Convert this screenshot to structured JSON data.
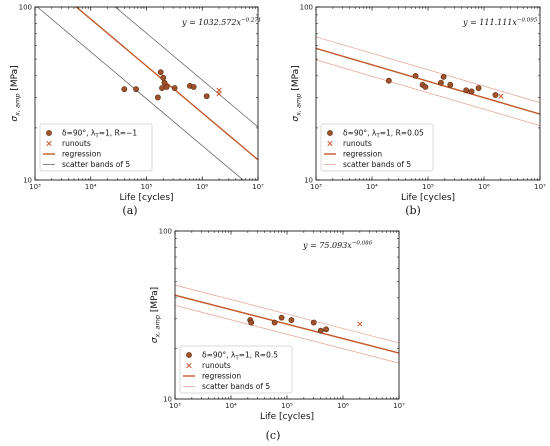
{
  "chart_data": [
    {
      "type": "scatter",
      "panel_label": "(a)",
      "xlabel": "Life [cycles]",
      "ylabel": "σx,amp [MPa]",
      "xscale": "log",
      "yscale": "log",
      "xlim": [
        1000,
        10000000
      ],
      "ylim": [
        10,
        100
      ],
      "x_ticks": [
        "10³",
        "10⁴",
        "10⁵",
        "10⁶",
        "10⁷"
      ],
      "y_ticks": [
        "10",
        "100"
      ],
      "equation": "y = 1032.572x^−0.271",
      "equation_parts": [
        "y = 1032.572x",
        "−0.271"
      ],
      "regression": {
        "a": 1032.572,
        "b": -0.271
      },
      "scatter_band_factor": 5,
      "legend_position": "bottom-left",
      "legend": {
        "data": "δ=90°, λT=1, R=−1",
        "runouts": "runouts",
        "regression": "regression",
        "bands": "scatter bands of 5"
      },
      "legend_data_parts": [
        "δ=90°, λ",
        "T",
        "=1, R=−1"
      ],
      "series": [
        {
          "name": "δ=90°, λT=1, R=−1",
          "x": [
            40000,
            65000,
            160000,
            180000,
            190000,
            200000,
            210000,
            230000,
            320000,
            600000,
            700000,
            1200000
          ],
          "y": [
            33.5,
            33.5,
            30,
            42,
            34,
            39,
            36.5,
            34.5,
            34,
            35,
            34.5,
            30.5
          ]
        },
        {
          "name": "runouts",
          "x": [
            2000000,
            2000000
          ],
          "y": [
            31.5,
            33
          ]
        }
      ]
    },
    {
      "type": "scatter",
      "panel_label": "(b)",
      "xlabel": "Life [cycles]",
      "ylabel": "σx,amp [MPa]",
      "xscale": "log",
      "yscale": "log",
      "xlim": [
        1000,
        10000000
      ],
      "ylim": [
        10,
        100
      ],
      "x_ticks": [
        "10³",
        "10⁴",
        "10⁵",
        "10⁶",
        "10⁷"
      ],
      "y_ticks": [
        "10",
        "100"
      ],
      "equation": "y = 111.111x^−0.095",
      "equation_parts": [
        "y = 111.111x",
        "−0.095"
      ],
      "regression": {
        "a": 111.111,
        "b": -0.095
      },
      "scatter_band_factor": 5,
      "legend_position": "bottom-left",
      "legend": {
        "data": "δ=90°, λT=1, R=0.05",
        "runouts": "runouts",
        "regression": "regression",
        "bands": "scatter bands of 5"
      },
      "legend_data_parts": [
        "δ=90°, λ",
        "T",
        "=1, R=0.05"
      ],
      "series": [
        {
          "name": "δ=90°, λT=1, R=0.05",
          "x": [
            20000,
            60000,
            80000,
            90000,
            170000,
            190000,
            250000,
            480000,
            600000,
            800000,
            1600000
          ],
          "y": [
            37.5,
            40,
            35.5,
            34.5,
            36.5,
            39.5,
            35.5,
            33,
            32.5,
            34,
            31
          ]
        },
        {
          "name": "runouts",
          "x": [
            2000000
          ],
          "y": [
            30.5
          ]
        }
      ]
    },
    {
      "type": "scatter",
      "panel_label": "(c)",
      "xlabel": "Life [cycles]",
      "ylabel": "σx,amp [MPa]",
      "xscale": "log",
      "yscale": "log",
      "xlim": [
        1000,
        10000000
      ],
      "ylim": [
        10,
        100
      ],
      "x_ticks": [
        "10³",
        "10⁴",
        "10⁵",
        "10⁶",
        "10⁷"
      ],
      "y_ticks": [
        "10",
        "100"
      ],
      "equation": "y = 75.093x^−0.086",
      "equation_parts": [
        "y = 75.093x",
        "−0.086"
      ],
      "regression": {
        "a": 75.093,
        "b": -0.086
      },
      "scatter_band_factor": 5,
      "legend_position": "bottom-left",
      "legend": {
        "data": "δ=90°, λT=1, R=0.5",
        "runouts": "runouts",
        "regression": "regression",
        "bands": "scatter bands of 5"
      },
      "legend_data_parts": [
        "δ=90°, λ",
        "T",
        "=1, R=0.5"
      ],
      "series": [
        {
          "name": "δ=90°, λT=1, R=0.5",
          "x": [
            22000,
            23000,
            60000,
            80000,
            120000,
            300000,
            400000,
            500000
          ],
          "y": [
            29.5,
            28.5,
            28.5,
            30.5,
            29.5,
            28.5,
            25.5,
            26
          ]
        },
        {
          "name": "runouts",
          "x": [
            2000000
          ],
          "y": [
            28
          ]
        }
      ]
    }
  ],
  "colors": {
    "marker_fill": "#a0522d",
    "marker_edge": "#5a2a0a",
    "runout": "#c04a1a",
    "regression": "#c25a2a",
    "band_a": "#555555",
    "band_bc": "#e7a090"
  }
}
